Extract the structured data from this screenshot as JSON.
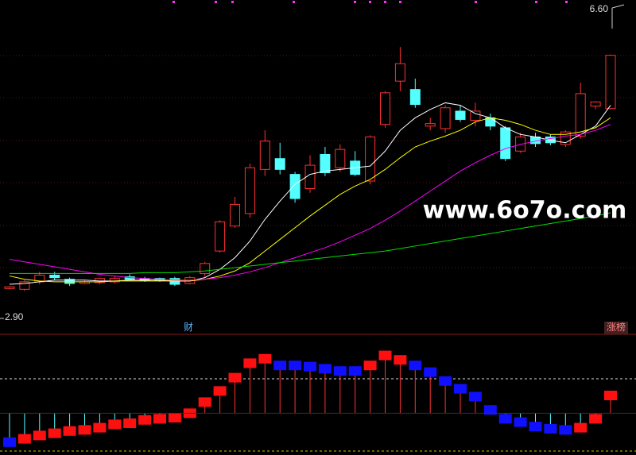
{
  "chart_data": {
    "type": "candlestick",
    "ylim": [
      2.9,
      6.6
    ],
    "yticks": [
      {
        "value": 2.9,
        "label": "2.90"
      },
      {
        "value": 6.6,
        "label": "6.60"
      }
    ],
    "up_color": "#ff3030",
    "down_color": "#54ffff",
    "candles": [
      [
        3.25,
        3.28,
        3.24,
        3.27
      ],
      [
        3.24,
        3.35,
        3.22,
        3.33
      ],
      [
        3.33,
        3.45,
        3.3,
        3.41
      ],
      [
        3.41,
        3.45,
        3.35,
        3.38
      ],
      [
        3.36,
        3.38,
        3.28,
        3.31
      ],
      [
        3.31,
        3.35,
        3.3,
        3.33
      ],
      [
        3.32,
        3.38,
        3.3,
        3.37
      ],
      [
        3.33,
        3.4,
        3.31,
        3.37
      ],
      [
        3.39,
        3.42,
        3.34,
        3.36
      ],
      [
        3.37,
        3.39,
        3.33,
        3.35
      ],
      [
        3.37,
        3.38,
        3.33,
        3.35
      ],
      [
        3.37,
        3.39,
        3.28,
        3.3
      ],
      [
        3.31,
        3.4,
        3.3,
        3.38
      ],
      [
        3.43,
        3.57,
        3.39,
        3.55
      ],
      [
        3.7,
        4.07,
        3.68,
        4.05
      ],
      [
        4.0,
        4.35,
        3.98,
        4.26
      ],
      [
        4.15,
        4.75,
        4.1,
        4.7
      ],
      [
        4.68,
        5.15,
        4.6,
        5.02
      ],
      [
        4.81,
        5.0,
        4.62,
        4.68
      ],
      [
        4.62,
        4.65,
        4.28,
        4.33
      ],
      [
        4.45,
        4.85,
        4.4,
        4.73
      ],
      [
        4.86,
        4.95,
        4.6,
        4.64
      ],
      [
        4.7,
        4.98,
        4.65,
        4.92
      ],
      [
        4.78,
        4.9,
        4.6,
        4.62
      ],
      [
        4.54,
        5.09,
        4.5,
        5.07
      ],
      [
        5.22,
        5.62,
        5.18,
        5.6
      ],
      [
        5.74,
        6.15,
        5.62,
        5.95
      ],
      [
        5.64,
        5.77,
        5.42,
        5.46
      ],
      [
        5.2,
        5.3,
        5.15,
        5.23
      ],
      [
        5.17,
        5.45,
        5.12,
        5.42
      ],
      [
        5.38,
        5.45,
        5.25,
        5.28
      ],
      [
        5.27,
        5.48,
        5.2,
        5.38
      ],
      [
        5.3,
        5.35,
        5.15,
        5.2
      ],
      [
        5.18,
        5.2,
        4.78,
        4.81
      ],
      [
        4.9,
        5.12,
        4.88,
        5.07
      ],
      [
        5.07,
        5.12,
        4.95,
        4.99
      ],
      [
        5.07,
        5.1,
        4.97,
        5.0
      ],
      [
        4.98,
        5.15,
        4.95,
        5.13
      ],
      [
        5.08,
        5.72,
        5.05,
        5.59
      ],
      [
        5.44,
        5.5,
        5.4,
        5.49
      ],
      [
        5.41,
        6.06,
        5.4,
        6.05
      ]
    ],
    "series": [
      {
        "color": "#ffffff",
        "values": [
          3.3,
          3.31,
          3.33,
          3.35,
          3.35,
          3.35,
          3.34,
          3.34,
          3.35,
          3.35,
          3.35,
          3.34,
          3.34,
          3.38,
          3.48,
          3.62,
          3.82,
          4.08,
          4.3,
          4.5,
          4.62,
          4.66,
          4.68,
          4.7,
          4.72,
          4.9,
          5.15,
          5.3,
          5.4,
          5.48,
          5.45,
          5.35,
          5.3,
          5.18,
          5.1,
          5.07,
          5.03,
          5.0,
          5.1,
          5.2,
          5.45
        ]
      },
      {
        "color": "#ffff00",
        "values": [
          3.4,
          3.36,
          3.34,
          3.33,
          3.33,
          3.33,
          3.33,
          3.34,
          3.34,
          3.34,
          3.34,
          3.34,
          3.34,
          3.36,
          3.4,
          3.46,
          3.56,
          3.7,
          3.84,
          3.98,
          4.12,
          4.25,
          4.38,
          4.48,
          4.56,
          4.68,
          4.82,
          4.95,
          5.02,
          5.08,
          5.15,
          5.25,
          5.3,
          5.27,
          5.22,
          5.15,
          5.1,
          5.1,
          5.13,
          5.18,
          5.3
        ]
      },
      {
        "color": "#ff00ff",
        "values": [
          3.6,
          3.57,
          3.54,
          3.51,
          3.48,
          3.45,
          3.42,
          3.4,
          3.38,
          3.37,
          3.36,
          3.35,
          3.35,
          3.36,
          3.38,
          3.41,
          3.45,
          3.5,
          3.56,
          3.62,
          3.68,
          3.74,
          3.81,
          3.89,
          3.97,
          4.07,
          4.18,
          4.3,
          4.42,
          4.54,
          4.66,
          4.76,
          4.85,
          4.93,
          4.98,
          5.02,
          5.05,
          5.08,
          5.1,
          5.15,
          5.22
        ]
      },
      {
        "color": "#00e000",
        "values": [
          3.43,
          3.43,
          3.43,
          3.43,
          3.43,
          3.43,
          3.43,
          3.43,
          3.43,
          3.44,
          3.44,
          3.44,
          3.45,
          3.46,
          3.48,
          3.5,
          3.52,
          3.54,
          3.56,
          3.58,
          3.6,
          3.62,
          3.64,
          3.66,
          3.68,
          3.7,
          3.73,
          3.76,
          3.79,
          3.82,
          3.85,
          3.88,
          3.91,
          3.94,
          3.97,
          4.0,
          4.03,
          4.06,
          4.09,
          4.12,
          4.16
        ]
      }
    ],
    "indicator": {
      "ylim": [
        0,
        100
      ],
      "baseline": 34,
      "reference_lines": [
        65,
        0
      ],
      "values": [
        8,
        11,
        14,
        16,
        18,
        19,
        21,
        24,
        25,
        28,
        29,
        30,
        34,
        44,
        54,
        66,
        79,
        83,
        77,
        77,
        76,
        74,
        72,
        72,
        77,
        86,
        82,
        77,
        71,
        63,
        56,
        49,
        37,
        29,
        26,
        22,
        20,
        19,
        21,
        29,
        50
      ],
      "colors": [
        "#1010ff",
        "#ff1010",
        "#ff1010",
        "#ff1010",
        "#ff1010",
        "#ff1010",
        "#ff1010",
        "#ff1010",
        "#ff1010",
        "#ff1010",
        "#ff1010",
        "#ff1010",
        "#ff1010",
        "#ff1010",
        "#ff1010",
        "#ff1010",
        "#ff1010",
        "#ff1010",
        "#1010ff",
        "#1010ff",
        "#1010ff",
        "#1010ff",
        "#1010ff",
        "#1010ff",
        "#ff1010",
        "#ff1010",
        "#ff1010",
        "#1010ff",
        "#1010ff",
        "#1010ff",
        "#1010ff",
        "#1010ff",
        "#1010ff",
        "#1010ff",
        "#1010ff",
        "#1010ff",
        "#1010ff",
        "#1010ff",
        "#ff1010",
        "#ff1010",
        "#ff1010"
      ]
    },
    "annotations": {
      "finance": "财",
      "rank": "涨榜",
      "watermark": "www.6o7o.com"
    }
  }
}
